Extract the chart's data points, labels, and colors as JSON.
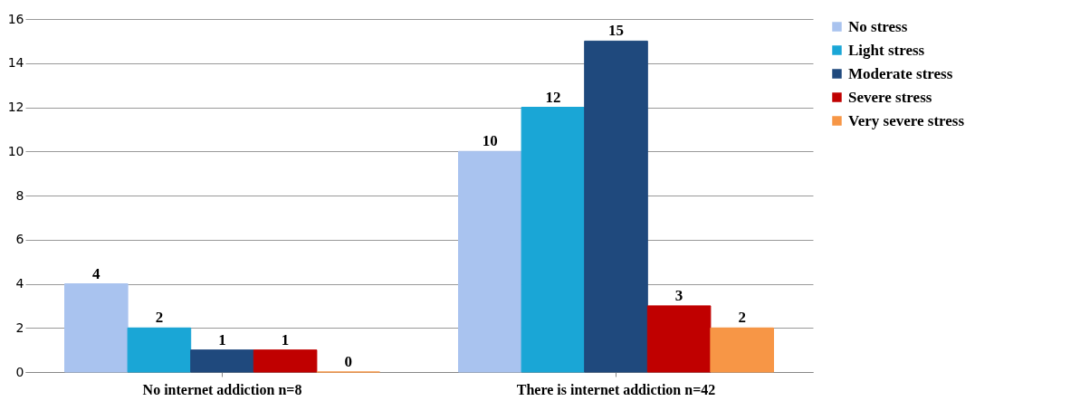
{
  "chart_data": {
    "type": "bar",
    "categories": [
      "No internet addiction n=8",
      "There is internet addiction n=42"
    ],
    "series": [
      {
        "name": "No stress",
        "color": "#a9c3ef",
        "values": [
          4,
          10
        ]
      },
      {
        "name": "Light stress",
        "color": "#1aa6d6",
        "values": [
          2,
          12
        ]
      },
      {
        "name": "Moderate stress",
        "color": "#1f497d",
        "values": [
          1,
          15
        ]
      },
      {
        "name": "Severe stress",
        "color": "#c00000",
        "values": [
          1,
          3
        ]
      },
      {
        "name": "Very severe stress",
        "color": "#f79646",
        "values": [
          0,
          2
        ]
      }
    ],
    "ylim": [
      0,
      16
    ],
    "yticks": [
      0,
      2,
      4,
      6,
      8,
      10,
      12,
      14,
      16
    ],
    "grid": "y",
    "legend": "right",
    "data_labels": true
  }
}
